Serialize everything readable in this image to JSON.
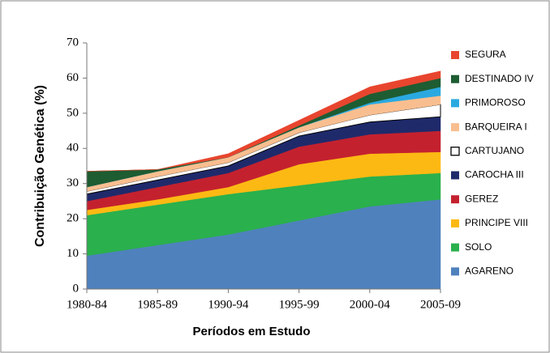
{
  "chart_data": {
    "type": "stacked_area",
    "xlabel": "Períodos em Estudo",
    "ylabel": "Contribuição Genética (%)",
    "categories": [
      "1980-84",
      "1985-89",
      "1990-94",
      "1995-99",
      "2000-04",
      "2005-09"
    ],
    "ylim": [
      0,
      70
    ],
    "yticks": [
      0,
      10,
      20,
      30,
      40,
      50,
      60,
      70
    ],
    "series": [
      {
        "name": "AGARENO",
        "color": "#4f81bd",
        "values": [
          9.5,
          12.5,
          15.5,
          19.5,
          23.5,
          25.5
        ]
      },
      {
        "name": "SOLO",
        "color": "#2ab04d",
        "values": [
          11.5,
          11.5,
          11.5,
          10,
          8.5,
          7.5
        ]
      },
      {
        "name": "PRINCIPE VIII",
        "color": "#fdb913",
        "values": [
          1.5,
          1.5,
          2,
          6,
          6.5,
          6
        ]
      },
      {
        "name": "GEREZ",
        "color": "#c4212f",
        "values": [
          2.5,
          3.5,
          4,
          5,
          5.5,
          6
        ]
      },
      {
        "name": "CAROCHA III",
        "color": "#1f2a6b",
        "values": [
          2,
          2,
          2,
          3,
          3.5,
          4
        ]
      },
      {
        "name": "CARTUJANO",
        "color": "#ffffff",
        "values": [
          0.8,
          1,
          1,
          1,
          2,
          3.5
        ]
      },
      {
        "name": "BARQUEIRA I",
        "color": "#f9be8f",
        "values": [
          1.2,
          1.5,
          1.5,
          1.5,
          3,
          2.5
        ]
      },
      {
        "name": "PRIMOROSO",
        "color": "#2aa9e0",
        "values": [
          0,
          0,
          0,
          0,
          0.5,
          2.5
        ]
      },
      {
        "name": "DESTINADO IV",
        "color": "#1e5c32",
        "values": [
          4.5,
          0.5,
          0,
          0.5,
          2.5,
          2.5
        ]
      },
      {
        "name": "SEGURA",
        "color": "#e8452e",
        "values": [
          0,
          0,
          1,
          1.5,
          2,
          2
        ]
      }
    ]
  }
}
